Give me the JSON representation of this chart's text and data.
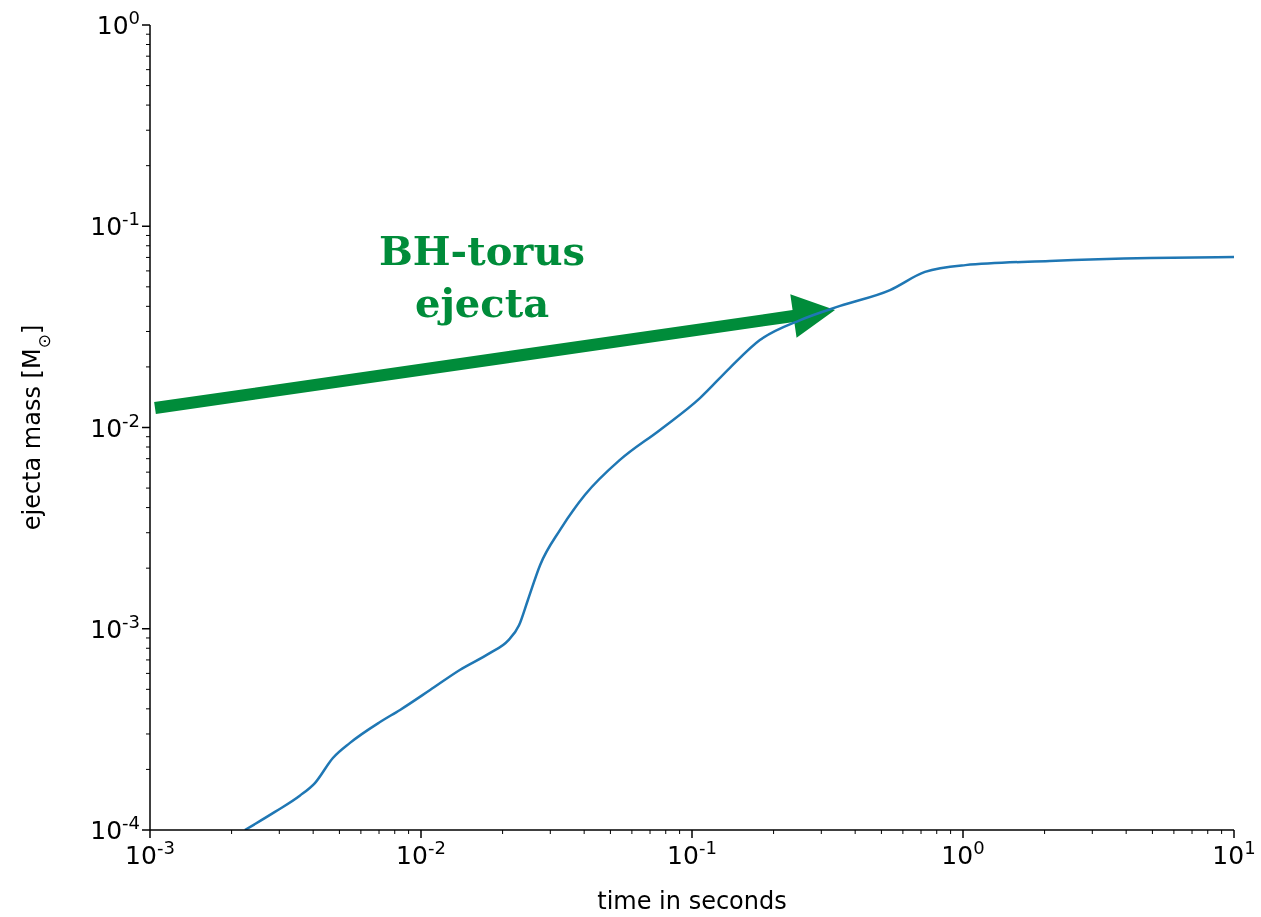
{
  "chart_data": {
    "type": "line",
    "xlabel": "time in seconds",
    "ylabel": "ejecta mass [M$_{⊙}$]",
    "log": "xy",
    "xlim": [
      0.001,
      10
    ],
    "ylim": [
      0.0001,
      1
    ],
    "xticks": [
      {
        "value": 0.001,
        "label": "10$^{-3}$"
      },
      {
        "value": 0.002,
        "label": null
      },
      {
        "value": 0.003,
        "label": null
      },
      {
        "value": 0.004,
        "label": null
      },
      {
        "value": 0.005,
        "label": null
      },
      {
        "value": 0.006,
        "label": null
      },
      {
        "value": 0.007,
        "label": null
      },
      {
        "value": 0.008,
        "label": null
      },
      {
        "value": 0.009,
        "label": null
      },
      {
        "value": 0.01,
        "label": "10$^{-2}$"
      },
      {
        "value": 0.02,
        "label": null
      },
      {
        "value": 0.03,
        "label": null
      },
      {
        "value": 0.04,
        "label": null
      },
      {
        "value": 0.05,
        "label": null
      },
      {
        "value": 0.06,
        "label": null
      },
      {
        "value": 0.07,
        "label": null
      },
      {
        "value": 0.08,
        "label": null
      },
      {
        "value": 0.09,
        "label": null
      },
      {
        "value": 0.1,
        "label": "10$^{-1}$"
      },
      {
        "value": 0.2,
        "label": null
      },
      {
        "value": 0.3,
        "label": null
      },
      {
        "value": 0.4,
        "label": null
      },
      {
        "value": 0.5,
        "label": null
      },
      {
        "value": 0.6,
        "label": null
      },
      {
        "value": 0.7,
        "label": null
      },
      {
        "value": 0.8,
        "label": null
      },
      {
        "value": 0.9,
        "label": null
      },
      {
        "value": 1,
        "label": "10$^{0}$"
      },
      {
        "value": 2,
        "label": null
      },
      {
        "value": 3,
        "label": null
      },
      {
        "value": 4,
        "label": null
      },
      {
        "value": 5,
        "label": null
      },
      {
        "value": 6,
        "label": null
      },
      {
        "value": 7,
        "label": null
      },
      {
        "value": 8,
        "label": null
      },
      {
        "value": 9,
        "label": null
      },
      {
        "value": 10,
        "label": "10$^{1}$"
      }
    ],
    "yticks": [
      {
        "value": 0.0001,
        "label": "10$^{-4}$"
      },
      {
        "value": 0.0002,
        "label": null
      },
      {
        "value": 0.0003,
        "label": null
      },
      {
        "value": 0.0004,
        "label": null
      },
      {
        "value": 0.0005,
        "label": null
      },
      {
        "value": 0.0006,
        "label": null
      },
      {
        "value": 0.0007,
        "label": null
      },
      {
        "value": 0.0008,
        "label": null
      },
      {
        "value": 0.0009,
        "label": null
      },
      {
        "value": 0.001,
        "label": "10$^{-3}$"
      },
      {
        "value": 0.002,
        "label": null
      },
      {
        "value": 0.003,
        "label": null
      },
      {
        "value": 0.004,
        "label": null
      },
      {
        "value": 0.005,
        "label": null
      },
      {
        "value": 0.006,
        "label": null
      },
      {
        "value": 0.007,
        "label": null
      },
      {
        "value": 0.008,
        "label": null
      },
      {
        "value": 0.009,
        "label": null
      },
      {
        "value": 0.01,
        "label": "10$^{-2}$"
      },
      {
        "value": 0.02,
        "label": null
      },
      {
        "value": 0.03,
        "label": null
      },
      {
        "value": 0.04,
        "label": null
      },
      {
        "value": 0.05,
        "label": null
      },
      {
        "value": 0.06,
        "label": null
      },
      {
        "value": 0.07,
        "label": null
      },
      {
        "value": 0.08,
        "label": null
      },
      {
        "value": 0.09,
        "label": null
      },
      {
        "value": 0.1,
        "label": "10$^{-1}$"
      },
      {
        "value": 0.2,
        "label": null
      },
      {
        "value": 0.3,
        "label": null
      },
      {
        "value": 0.4,
        "label": null
      },
      {
        "value": 0.5,
        "label": null
      },
      {
        "value": 0.6,
        "label": null
      },
      {
        "value": 0.7,
        "label": null
      },
      {
        "value": 0.8,
        "label": null
      },
      {
        "value": 0.9,
        "label": null
      },
      {
        "value": 1,
        "label": "10$^{0}$"
      }
    ],
    "series": [
      {
        "color": "#1f77b4",
        "x": [
          0.00224,
          0.00289,
          0.00357,
          0.00406,
          0.00473,
          0.00547,
          0.00706,
          0.00837,
          0.0108,
          0.0139,
          0.018,
          0.0209,
          0.023,
          0.0248,
          0.0275,
          0.0326,
          0.0403,
          0.0542,
          0.0762,
          0.107,
          0.138,
          0.178,
          0.251,
          0.352,
          0.538,
          0.724,
          1.02,
          2.09,
          4.9,
          10
        ],
        "values": [
          0.0001,
          0.000123,
          0.000148,
          0.000171,
          0.000228,
          0.000271,
          0.000344,
          0.000395,
          0.000496,
          0.000624,
          0.000759,
          0.00087,
          0.00104,
          0.00139,
          0.00207,
          0.0031,
          0.00463,
          0.0069,
          0.00973,
          0.014,
          0.0198,
          0.0272,
          0.0342,
          0.0402,
          0.0482,
          0.0593,
          0.0641,
          0.0672,
          0.0695,
          0.0703
        ]
      }
    ],
    "annotations": [
      "BH-torus ejecta"
    ]
  }
}
